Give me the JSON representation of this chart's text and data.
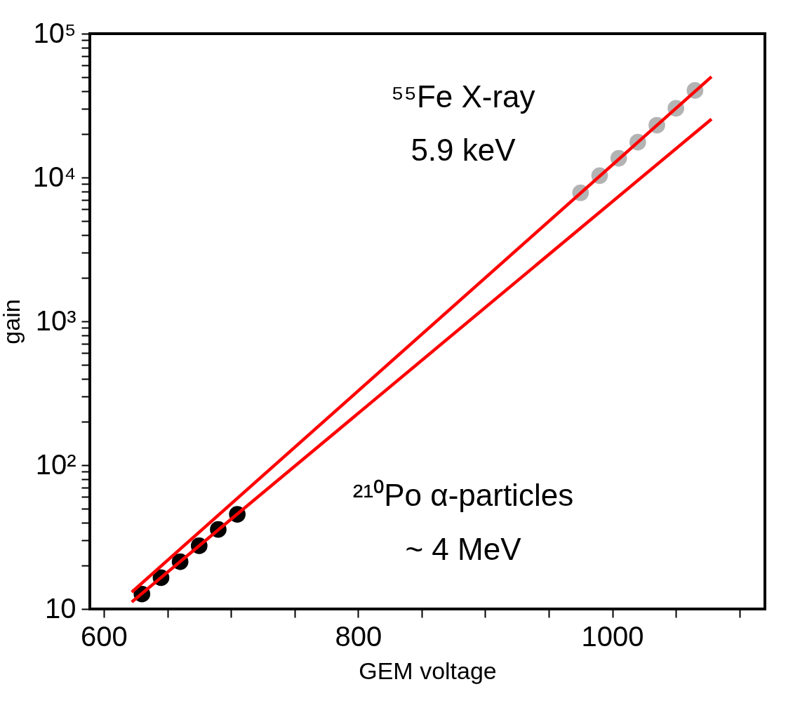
{
  "chart_data": {
    "type": "scatter",
    "xlabel": "GEM voltage",
    "ylabel": "gain",
    "log": "y",
    "grid": false,
    "xlim": [
      589,
      1120
    ],
    "xticks": [
      600,
      {
        "value": 650,
        "label": null
      },
      {
        "value": 700,
        "label": null
      },
      {
        "value": 750,
        "label": null
      },
      800,
      {
        "value": 850,
        "label": null
      },
      {
        "value": 900,
        "label": null
      },
      {
        "value": 950,
        "label": null
      },
      1000,
      {
        "value": 1050,
        "label": null
      },
      {
        "value": 1100,
        "label": null
      }
    ],
    "ylim": [
      10,
      100000
    ],
    "yticks": [
      10,
      {
        "value": 20,
        "label": null
      },
      {
        "value": 30,
        "label": null
      },
      {
        "value": 40,
        "label": null
      },
      {
        "value": 50,
        "label": null
      },
      {
        "value": 60,
        "label": null
      },
      {
        "value": 70,
        "label": null
      },
      {
        "value": 80,
        "label": null
      },
      {
        "value": 90,
        "label": null
      },
      {
        "value": 100,
        "label": "10²"
      },
      {
        "value": 200,
        "label": null
      },
      {
        "value": 300,
        "label": null
      },
      {
        "value": 400,
        "label": null
      },
      {
        "value": 500,
        "label": null
      },
      {
        "value": 600,
        "label": null
      },
      {
        "value": 700,
        "label": null
      },
      {
        "value": 800,
        "label": null
      },
      {
        "value": 900,
        "label": null
      },
      {
        "value": 1000,
        "label": "10³"
      },
      {
        "value": 2000,
        "label": null
      },
      {
        "value": 3000,
        "label": null
      },
      {
        "value": 4000,
        "label": null
      },
      {
        "value": 5000,
        "label": null
      },
      {
        "value": 6000,
        "label": null
      },
      {
        "value": 7000,
        "label": null
      },
      {
        "value": 8000,
        "label": null
      },
      {
        "value": 9000,
        "label": null
      },
      {
        "value": 10000,
        "label": "10⁴"
      },
      {
        "value": 20000,
        "label": null
      },
      {
        "value": 30000,
        "label": null
      },
      {
        "value": 40000,
        "label": null
      },
      {
        "value": 50000,
        "label": null
      },
      {
        "value": 60000,
        "label": null
      },
      {
        "value": 70000,
        "label": null
      },
      {
        "value": 80000,
        "label": null
      },
      {
        "value": 90000,
        "label": null
      },
      {
        "value": 100000,
        "label": "10⁵"
      }
    ],
    "annotations": [
      "⁵⁵Fe X-ray",
      "5.9 keV",
      "²¹⁰Po α-particles",
      "~ 4 MeV"
    ],
    "series": [
      {
        "marker": "circle",
        "color": "#000000",
        "x": [
          630,
          645,
          660,
          675,
          690,
          705
        ],
        "values": [
          12.7,
          16.5,
          21.3,
          27.5,
          35.7,
          45.5
        ]
      },
      {
        "marker": "circle",
        "color": "#b3b3b3",
        "x": [
          975,
          990,
          1005,
          1020,
          1035,
          1050,
          1065
        ],
        "values": [
          7830,
          10300,
          13600,
          17600,
          23100,
          30300,
          40300
        ]
      },
      {
        "type": "line",
        "marker": "none",
        "line_style": "solid",
        "color": "#ff0000",
        "x": [
          622,
          1078
        ],
        "values": [
          13.1,
          50200
        ]
      },
      {
        "type": "line",
        "marker": "none",
        "line_style": "solid",
        "color": "#ff0000",
        "x": [
          622,
          1078
        ],
        "values": [
          11.2,
          25500
        ]
      }
    ]
  }
}
